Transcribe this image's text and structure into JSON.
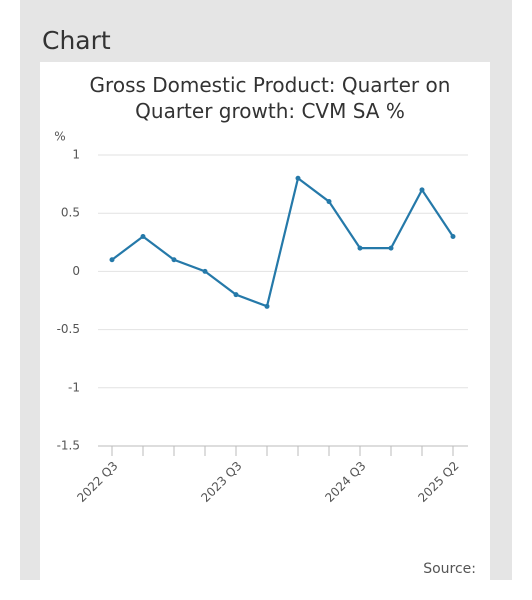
{
  "page_heading": "Chart",
  "chart_data": {
    "type": "line",
    "title": "Gross Domestic Product: Quarter on Quarter growth: CVM SA %",
    "y_unit": "%",
    "categories": [
      "2022 Q3",
      null,
      null,
      null,
      "2023 Q3",
      null,
      null,
      null,
      "2024 Q3",
      null,
      null,
      "2025 Q2"
    ],
    "values": [
      0.1,
      0.3,
      0.1,
      0.0,
      -0.2,
      -0.3,
      0.8,
      0.6,
      0.2,
      0.2,
      0.7,
      0.3
    ],
    "color": "#2579a9",
    "ylim": [
      -1.5,
      1
    ],
    "yticks": [
      -1.5,
      -1,
      -0.5,
      0,
      0.5,
      1
    ],
    "grid": true,
    "source": "Source:"
  }
}
